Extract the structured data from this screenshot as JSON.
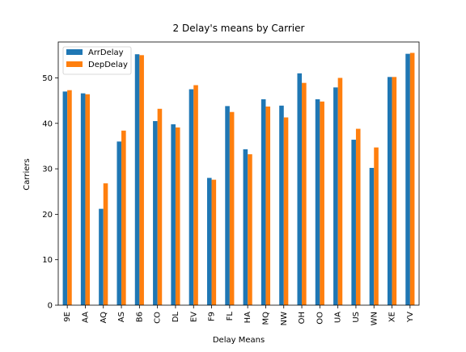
{
  "chart_data": {
    "type": "bar",
    "title": "2 Delay's means by Carrier",
    "xlabel": "Delay Means",
    "ylabel": "Carriers",
    "categories": [
      "9E",
      "AA",
      "AQ",
      "AS",
      "B6",
      "CO",
      "DL",
      "EV",
      "F9",
      "FL",
      "HA",
      "MQ",
      "NW",
      "OH",
      "OO",
      "UA",
      "US",
      "WN",
      "XE",
      "YV"
    ],
    "series": [
      {
        "name": "ArrDelay",
        "color": "#1f77b4",
        "values": [
          47.0,
          46.6,
          21.2,
          36.0,
          55.2,
          40.5,
          39.8,
          47.5,
          28.0,
          43.8,
          34.3,
          45.3,
          43.9,
          51.0,
          45.3,
          47.9,
          36.4,
          30.2,
          50.2,
          55.3
        ]
      },
      {
        "name": "DepDelay",
        "color": "#ff7f0e",
        "values": [
          47.3,
          46.4,
          26.8,
          38.4,
          55.0,
          43.2,
          39.1,
          48.4,
          27.6,
          42.5,
          33.2,
          43.7,
          41.3,
          48.9,
          44.8,
          50.0,
          38.8,
          34.7,
          50.2,
          55.5
        ]
      }
    ],
    "ylim": [
      0,
      57.9
    ],
    "yticks": [
      0,
      10,
      20,
      30,
      40,
      50
    ],
    "grid": false,
    "legend_position": "top-left"
  }
}
